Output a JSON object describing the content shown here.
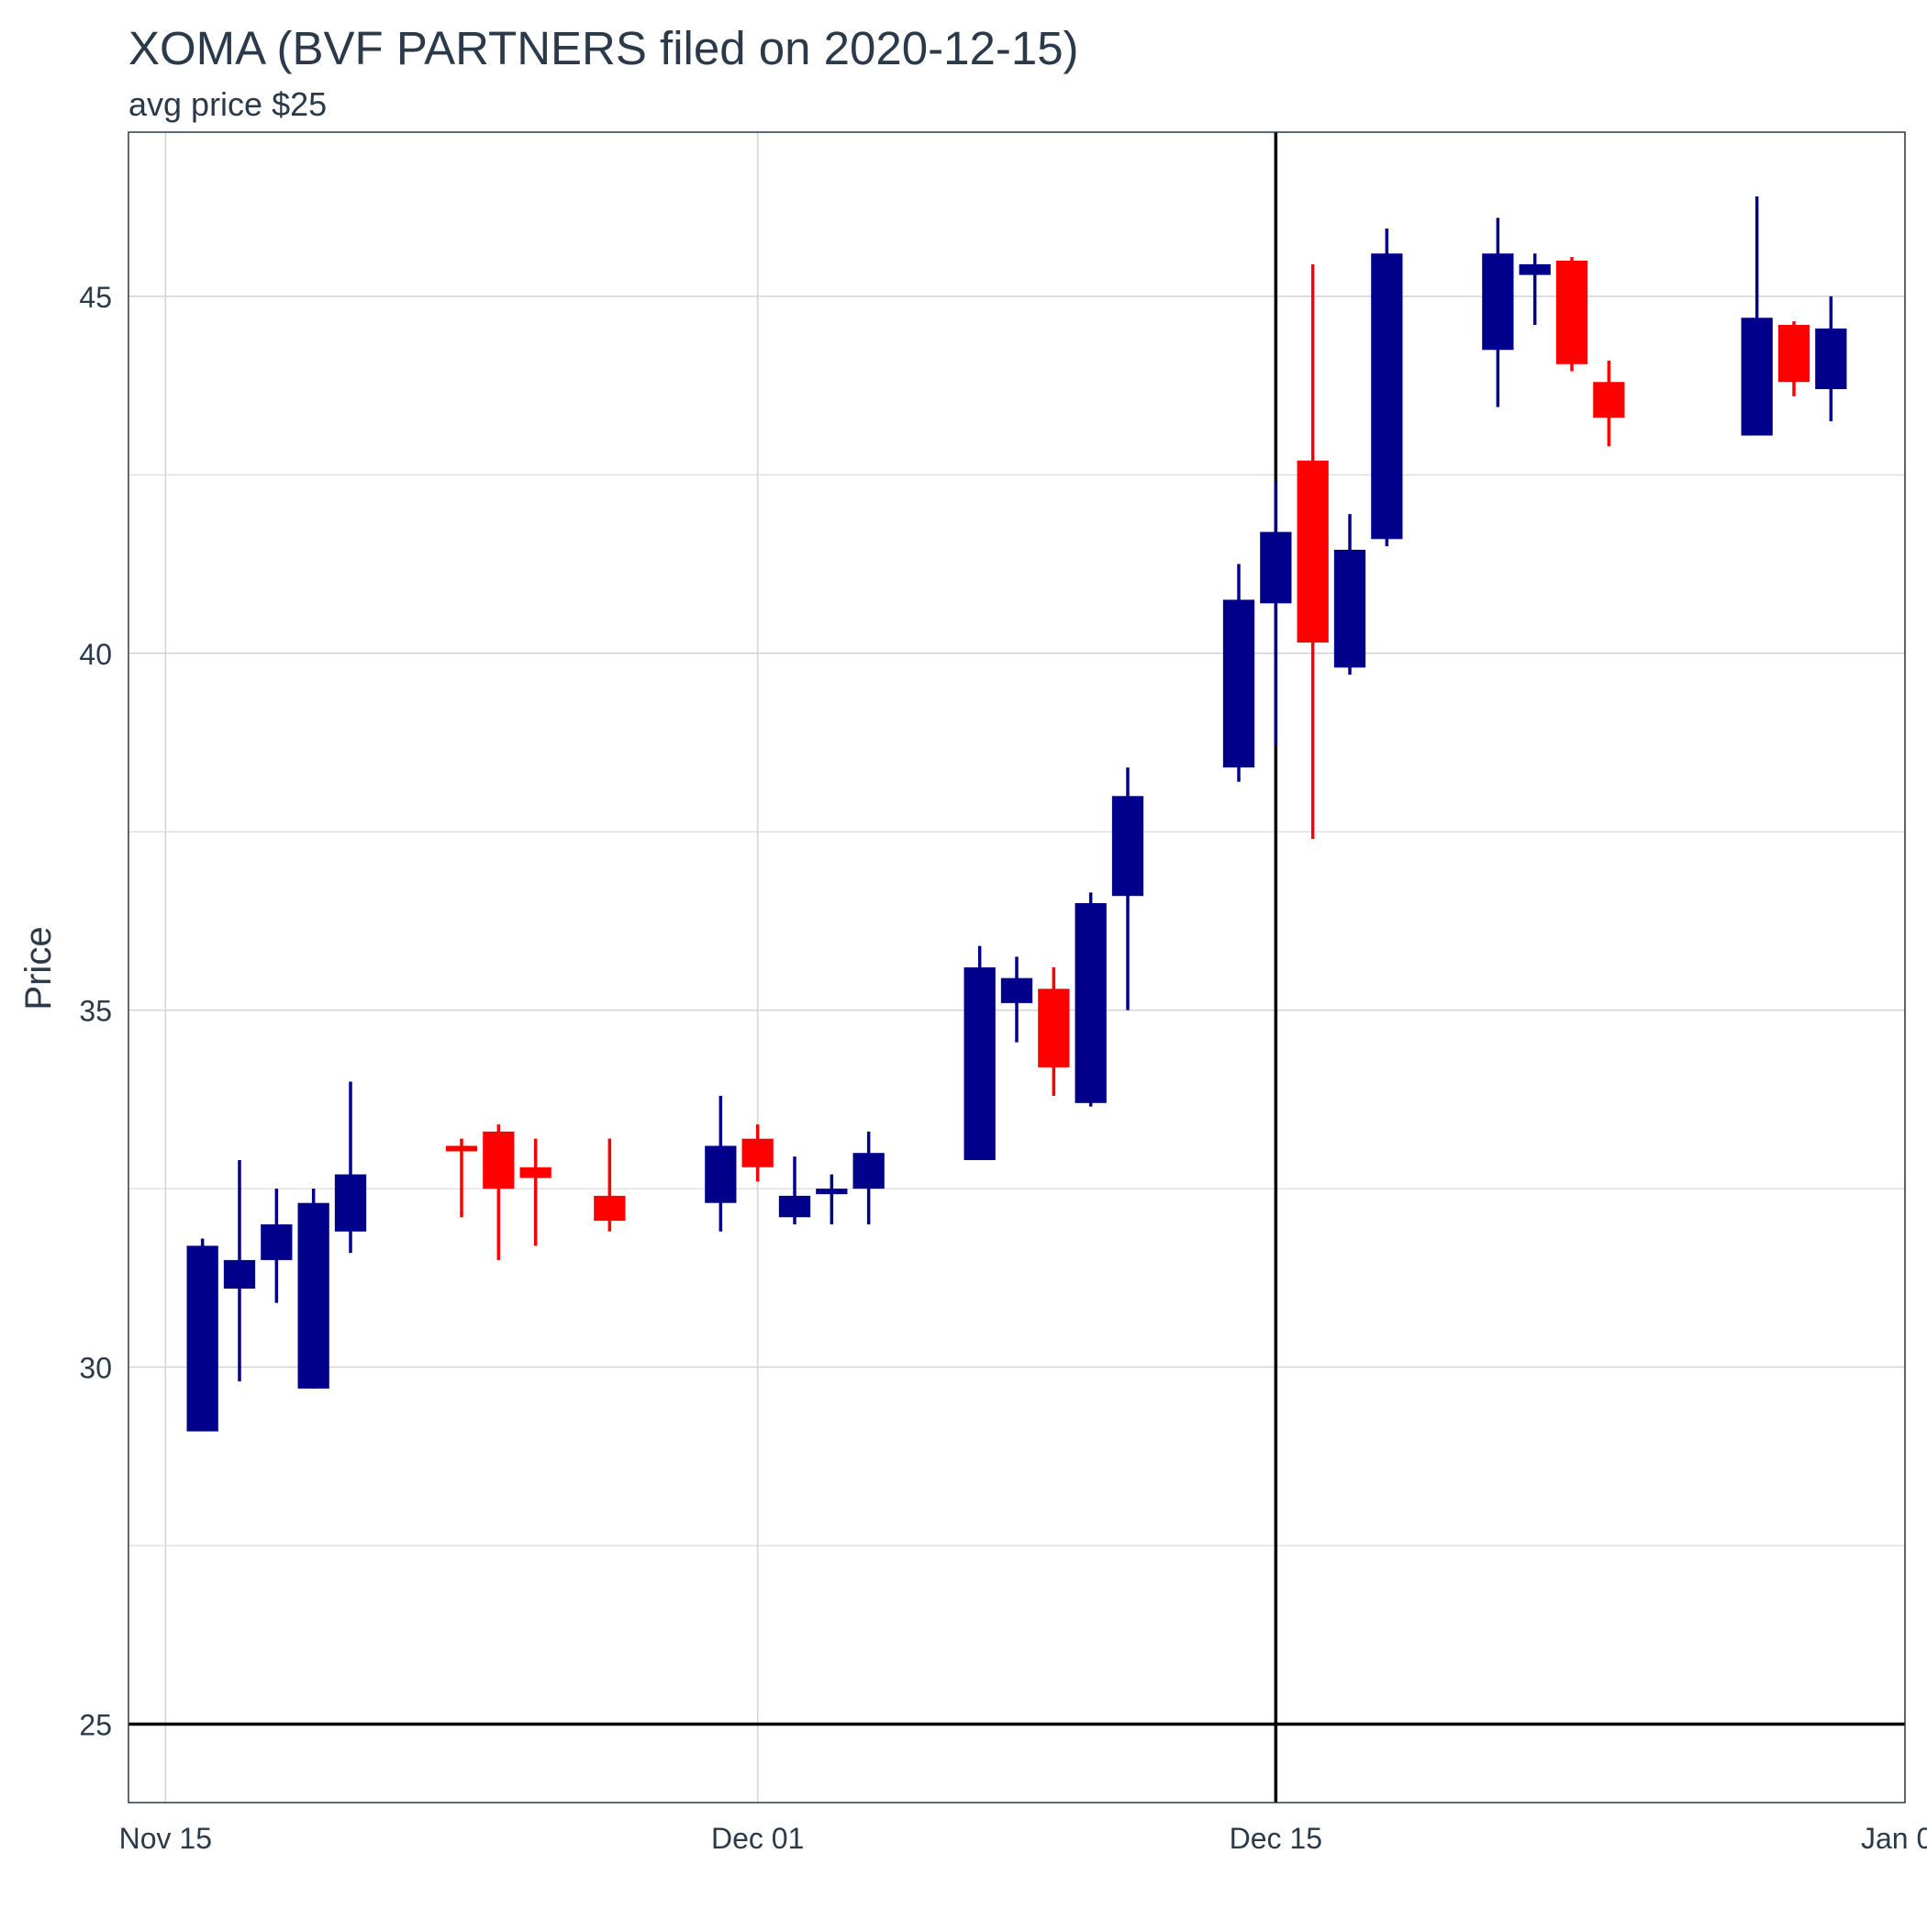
{
  "chart_data": {
    "type": "candlestick",
    "title": "XOMA (BVF PARTNERS filed on 2020-12-15)",
    "subtitle": "avg price $25",
    "ylabel": "Price",
    "xlabel": "",
    "xlim": [
      "2020-11-14",
      "2021-01-01"
    ],
    "ylim": [
      23.9,
      47.3
    ],
    "x_ticks": [
      {
        "date": "2020-11-15",
        "label": "Nov 15"
      },
      {
        "date": "2020-12-01",
        "label": "Dec 01"
      },
      {
        "date": "2020-12-15",
        "label": "Dec 15"
      },
      {
        "date": "2021-01-01",
        "label": "Jan 01"
      }
    ],
    "y_ticks": [
      25,
      30,
      35,
      40,
      45
    ],
    "grid": true,
    "reference_lines": {
      "horizontal_price": 25,
      "vertical_date": "2020-12-15"
    },
    "colors": {
      "up": "#00008b",
      "down": "#ff0000",
      "text": "#2b3a4a",
      "grid": "#d3d3d3",
      "reference": "#000000"
    },
    "candles": [
      {
        "date": "2020-11-16",
        "open": 29.1,
        "high": 31.8,
        "low": 29.1,
        "close": 31.7
      },
      {
        "date": "2020-11-17",
        "open": 31.1,
        "high": 32.9,
        "low": 29.8,
        "close": 31.5
      },
      {
        "date": "2020-11-18",
        "open": 31.5,
        "high": 32.5,
        "low": 30.9,
        "close": 32.0
      },
      {
        "date": "2020-11-19",
        "open": 29.7,
        "high": 32.5,
        "low": 29.7,
        "close": 32.3
      },
      {
        "date": "2020-11-20",
        "open": 31.9,
        "high": 34.0,
        "low": 31.6,
        "close": 32.7
      },
      {
        "date": "2020-11-23",
        "open": 33.1,
        "high": 33.2,
        "low": 32.1,
        "close": 33.05
      },
      {
        "date": "2020-11-24",
        "open": 33.3,
        "high": 33.4,
        "low": 31.5,
        "close": 32.5
      },
      {
        "date": "2020-11-25",
        "open": 32.8,
        "high": 33.2,
        "low": 31.7,
        "close": 32.65
      },
      {
        "date": "2020-11-27",
        "open": 32.4,
        "high": 33.2,
        "low": 31.9,
        "close": 32.05
      },
      {
        "date": "2020-11-30",
        "open": 32.3,
        "high": 33.8,
        "low": 31.9,
        "close": 33.1
      },
      {
        "date": "2020-12-01",
        "open": 33.2,
        "high": 33.4,
        "low": 32.6,
        "close": 32.8
      },
      {
        "date": "2020-12-02",
        "open": 32.1,
        "high": 32.95,
        "low": 32.0,
        "close": 32.4
      },
      {
        "date": "2020-12-03",
        "open": 32.45,
        "high": 32.7,
        "low": 32.0,
        "close": 32.5
      },
      {
        "date": "2020-12-04",
        "open": 32.5,
        "high": 33.3,
        "low": 32.0,
        "close": 33.0
      },
      {
        "date": "2020-12-07",
        "open": 32.9,
        "high": 35.9,
        "low": 32.9,
        "close": 35.6
      },
      {
        "date": "2020-12-08",
        "open": 35.1,
        "high": 35.75,
        "low": 34.55,
        "close": 35.45
      },
      {
        "date": "2020-12-09",
        "open": 35.3,
        "high": 35.6,
        "low": 33.8,
        "close": 34.2
      },
      {
        "date": "2020-12-10",
        "open": 33.7,
        "high": 36.65,
        "low": 33.65,
        "close": 36.5
      },
      {
        "date": "2020-12-11",
        "open": 36.6,
        "high": 38.4,
        "low": 35.0,
        "close": 38.0
      },
      {
        "date": "2020-12-14",
        "open": 38.4,
        "high": 41.25,
        "low": 38.2,
        "close": 40.75
      },
      {
        "date": "2020-12-15",
        "open": 40.7,
        "high": 42.4,
        "low": 38.7,
        "close": 41.7
      },
      {
        "date": "2020-12-16",
        "open": 42.7,
        "high": 45.45,
        "low": 37.4,
        "close": 40.15
      },
      {
        "date": "2020-12-17",
        "open": 39.8,
        "high": 41.95,
        "low": 39.7,
        "close": 41.45
      },
      {
        "date": "2020-12-18",
        "open": 41.6,
        "high": 45.95,
        "low": 41.5,
        "close": 45.6
      },
      {
        "date": "2020-12-21",
        "open": 44.25,
        "high": 46.1,
        "low": 43.45,
        "close": 45.6
      },
      {
        "date": "2020-12-22",
        "open": 45.3,
        "high": 45.6,
        "low": 44.6,
        "close": 45.45
      },
      {
        "date": "2020-12-23",
        "open": 45.5,
        "high": 45.55,
        "low": 43.95,
        "close": 44.05
      },
      {
        "date": "2020-12-24",
        "open": 43.8,
        "high": 44.1,
        "low": 42.9,
        "close": 43.3
      },
      {
        "date": "2020-12-28",
        "open": 43.05,
        "high": 46.4,
        "low": 43.05,
        "close": 44.7
      },
      {
        "date": "2020-12-29",
        "open": 44.6,
        "high": 44.65,
        "low": 43.6,
        "close": 43.8
      },
      {
        "date": "2020-12-30",
        "open": 43.7,
        "high": 45.0,
        "low": 43.25,
        "close": 44.55
      }
    ]
  }
}
